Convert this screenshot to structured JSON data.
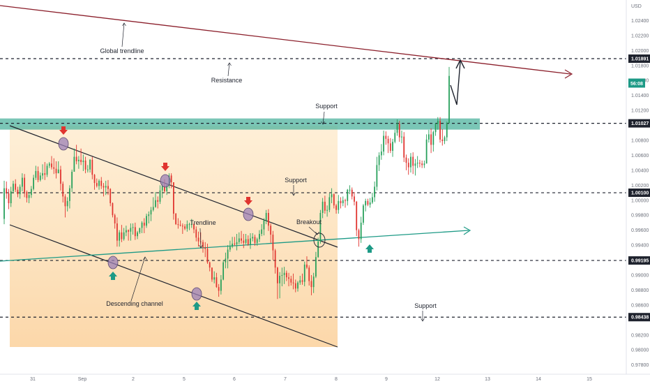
{
  "chart_data": {
    "type": "candlestick",
    "currency": "USD",
    "y_ticks": [
      "1.02400",
      "1.02200",
      "1.02000",
      "1.01800",
      "1.01600",
      "1.01400",
      "1.01200",
      "1.00800",
      "1.00600",
      "1.00400",
      "1.00200",
      "1.00000",
      "0.99800",
      "0.99600",
      "0.99400",
      "0.99000",
      "0.98800",
      "0.98600",
      "0.98200",
      "0.98000",
      "0.97800"
    ],
    "ylim": [
      0.9775,
      1.026
    ],
    "x_ticks": [
      "31",
      "Sep",
      "2",
      "5",
      "6",
      "7",
      "8",
      "9",
      "12",
      "13",
      "14",
      "15"
    ],
    "price_tags": [
      {
        "label": "1.01891",
        "style": "dark"
      },
      {
        "label": "1.01027",
        "style": "dark"
      },
      {
        "label": "1.00100",
        "style": "dark"
      },
      {
        "label": "0.99195",
        "style": "dark"
      },
      {
        "label": "0.98438",
        "style": "dark"
      }
    ],
    "current_tag": {
      "label": "56:08",
      "style": "teal"
    },
    "levels": [
      1.01891,
      1.01027,
      1.001,
      0.99195,
      0.98438
    ],
    "annotations": {
      "global_trendline": "Global trendline",
      "resistance": "Resistance",
      "support_top": "Support",
      "support_mid": "Support",
      "support_bottom": "Support",
      "trendline": "Trendline",
      "breakout": "Breakout",
      "descending_channel": "Descending channel"
    },
    "candles": [
      [
        0.9975,
        1.0026,
        0.9968,
        1.0016
      ],
      [
        1.0016,
        1.0025,
        1.0002,
        1.0009
      ],
      [
        1.0009,
        1.0015,
        0.9988,
        0.9996
      ],
      [
        0.9996,
        1.0018,
        0.9991,
        1.0012
      ],
      [
        1.0012,
        1.0026,
        1.0009,
        1.0022
      ],
      [
        1.0022,
        1.0028,
        1.0011,
        1.0014
      ],
      [
        1.0014,
        1.0018,
        1.0004,
        1.0008
      ],
      [
        1.0008,
        1.0021,
        1.0002,
        1.0018
      ],
      [
        1.0018,
        1.0036,
        1.0012,
        1.003
      ],
      [
        1.003,
        1.0035,
        1.0004,
        1.0011
      ],
      [
        1.0011,
        1.0013,
        0.9997,
        1.0003
      ],
      [
        1.0003,
        1.0011,
        0.9996,
        1.0007
      ],
      [
        1.0007,
        1.0019,
        1.0003,
        1.0015
      ],
      [
        1.0015,
        1.0034,
        1.0013,
        1.003
      ],
      [
        1.003,
        1.0046,
        1.0027,
        1.0039
      ],
      [
        1.0039,
        1.0045,
        1.0024,
        1.0027
      ],
      [
        1.0027,
        1.0037,
        1.0025,
        1.0033
      ],
      [
        1.0033,
        1.0048,
        1.0028,
        1.0036
      ],
      [
        1.0036,
        1.0051,
        1.0027,
        1.0034
      ],
      [
        1.0034,
        1.0049,
        1.0031,
        1.0046
      ],
      [
        1.0046,
        1.0051,
        1.0043,
        1.0049
      ],
      [
        1.0049,
        1.0059,
        1.0041,
        1.0044
      ],
      [
        1.0044,
        1.0056,
        1.0035,
        1.0042
      ],
      [
        1.0042,
        1.0052,
        1.0029,
        1.0036
      ],
      [
        1.0036,
        1.0052,
        1.0036,
        1.0041
      ],
      [
        1.0041,
        1.0046,
        1.0013,
        1.0022
      ],
      [
        1.0022,
        1.0025,
        0.9997,
        1.0005
      ],
      [
        1.0005,
        1.0008,
        0.9977,
        0.9992
      ],
      [
        0.9992,
        1.0004,
        0.9985,
        0.9999
      ],
      [
        0.9999,
        1.002,
        0.9989,
        1.0016
      ],
      [
        1.0016,
        1.0041,
        1.0011,
        1.0038
      ],
      [
        1.0038,
        1.0069,
        1.0038,
        1.0058
      ],
      [
        1.0058,
        1.0074,
        1.0048,
        1.0052
      ],
      [
        1.0052,
        1.0059,
        1.0042,
        1.0054
      ],
      [
        1.0054,
        1.0069,
        1.0047,
        1.0051
      ],
      [
        1.0051,
        1.0061,
        1.0039,
        1.0053
      ],
      [
        1.0053,
        1.0058,
        1.0036,
        1.0041
      ],
      [
        1.0041,
        1.0047,
        1.0037,
        1.0041
      ],
      [
        1.0041,
        1.0055,
        1.0037,
        1.0054
      ],
      [
        1.0054,
        1.0058,
        1.0028,
        1.0034
      ],
      [
        1.0034,
        1.0035,
        1.0014,
        1.0023
      ],
      [
        1.0023,
        1.0029,
        1.0017,
        1.0019
      ],
      [
        1.0019,
        1.0028,
        1.0014,
        1.0026
      ],
      [
        1.0026,
        1.0031,
        1.0015,
        1.0019
      ],
      [
        1.0019,
        1.0023,
        1.0005,
        1.0017
      ],
      [
        1.0017,
        1.0026,
        1.0007,
        1.0019
      ],
      [
        1.0019,
        1.0027,
        1.0007,
        1.0015
      ],
      [
        1.0015,
        1.0016,
        0.9992,
        0.9996
      ],
      [
        0.9996,
        0.9997,
        0.9977,
        0.998
      ],
      [
        0.998,
        0.9982,
        0.9962,
        0.9969
      ],
      [
        0.9969,
        0.9977,
        0.9938,
        0.9946
      ],
      [
        0.9946,
        0.996,
        0.9938,
        0.9957
      ],
      [
        0.9957,
        0.9967,
        0.9944,
        0.9948
      ],
      [
        0.9948,
        0.9963,
        0.9946,
        0.9957
      ],
      [
        0.9957,
        0.9966,
        0.9952,
        0.996
      ],
      [
        0.996,
        0.9961,
        0.9946,
        0.9958
      ],
      [
        0.9958,
        0.9969,
        0.9946,
        0.9963
      ],
      [
        0.9963,
        0.9969,
        0.9954,
        0.9964
      ],
      [
        0.9964,
        0.997,
        0.9947,
        0.9952
      ],
      [
        0.9952,
        0.9959,
        0.9948,
        0.9957
      ],
      [
        0.9957,
        0.9963,
        0.9955,
        0.9963
      ],
      [
        0.9963,
        0.9972,
        0.9956,
        0.997
      ],
      [
        0.997,
        0.9976,
        0.9956,
        0.9966
      ],
      [
        0.9966,
        0.9982,
        0.9963,
        0.9979
      ],
      [
        0.9979,
        0.9985,
        0.9969,
        0.9981
      ],
      [
        0.9981,
        0.9991,
        0.9972,
        0.9987
      ],
      [
        0.9987,
        1.0004,
        0.9985,
        0.9991
      ],
      [
        0.9991,
        1.0011,
        0.999,
        1.0
      ],
      [
        1.0,
        1.0005,
        0.9989,
        0.9998
      ],
      [
        0.9998,
        1.002,
        0.9995,
        1.0013
      ],
      [
        1.0013,
        1.0025,
        1.0003,
        1.0019
      ],
      [
        1.0019,
        1.0028,
        1.001,
        1.0012
      ],
      [
        1.0012,
        1.0021,
        1.0007,
        1.002
      ],
      [
        1.002,
        1.0036,
        1.0016,
        1.0033
      ],
      [
        1.0033,
        1.0036,
        1.0016,
        1.0024
      ],
      [
        1.0024,
        1.0024,
        0.9974,
        0.9982
      ],
      [
        0.9982,
        0.9983,
        0.9967,
        0.9968
      ],
      [
        0.9968,
        0.9976,
        0.9962,
        0.9967
      ],
      [
        0.9967,
        0.9973,
        0.9965,
        0.9966
      ],
      [
        0.9966,
        0.9969,
        0.9955,
        0.9965
      ],
      [
        0.9965,
        0.9968,
        0.996,
        0.9962
      ],
      [
        0.9962,
        0.9973,
        0.9958,
        0.9968
      ],
      [
        0.9968,
        0.997,
        0.996,
        0.9968
      ],
      [
        0.9968,
        0.9975,
        0.9963,
        0.9968
      ],
      [
        0.9968,
        0.9969,
        0.9956,
        0.9961
      ],
      [
        0.9961,
        0.9965,
        0.9945,
        0.995
      ],
      [
        0.995,
        0.9958,
        0.9938,
        0.9945
      ],
      [
        0.9945,
        0.9957,
        0.9941,
        0.9944
      ],
      [
        0.9944,
        0.9947,
        0.993,
        0.9937
      ],
      [
        0.9937,
        0.9944,
        0.9924,
        0.9935
      ],
      [
        0.9935,
        0.9942,
        0.9915,
        0.9917
      ],
      [
        0.9917,
        0.9918,
        0.9905,
        0.991
      ],
      [
        0.991,
        0.991,
        0.9891,
        0.9894
      ],
      [
        0.9894,
        0.9905,
        0.9889,
        0.9897
      ],
      [
        0.9897,
        0.9903,
        0.9883,
        0.9884
      ],
      [
        0.9884,
        0.9888,
        0.9871,
        0.9879
      ],
      [
        0.9879,
        0.99,
        0.9874,
        0.9894
      ],
      [
        0.9894,
        0.992,
        0.9893,
        0.9917
      ],
      [
        0.9917,
        0.993,
        0.9909,
        0.9922
      ],
      [
        0.9922,
        0.994,
        0.9909,
        0.9934
      ],
      [
        0.9934,
        0.9946,
        0.9931,
        0.9938
      ],
      [
        0.9938,
        0.9951,
        0.9936,
        0.9942
      ],
      [
        0.9942,
        0.9951,
        0.9939,
        0.9941
      ],
      [
        0.9941,
        0.9955,
        0.9933,
        0.9944
      ],
      [
        0.9944,
        0.9957,
        0.9941,
        0.9949
      ],
      [
        0.9949,
        0.9959,
        0.9942,
        0.9946
      ],
      [
        0.9946,
        0.9955,
        0.9936,
        0.9943
      ],
      [
        0.9943,
        0.9955,
        0.9941,
        0.9948
      ],
      [
        0.9948,
        0.9953,
        0.9939,
        0.9941
      ],
      [
        0.9941,
        0.9956,
        0.9935,
        0.9949
      ],
      [
        0.9949,
        0.9956,
        0.9945,
        0.9951
      ],
      [
        0.9951,
        0.9954,
        0.9939,
        0.9943
      ],
      [
        0.9943,
        0.995,
        0.9939,
        0.9948
      ],
      [
        0.9948,
        0.996,
        0.9944,
        0.9955
      ],
      [
        0.9955,
        0.9968,
        0.9952,
        0.9961
      ],
      [
        0.9961,
        0.9976,
        0.9953,
        0.9973
      ],
      [
        0.9973,
        0.9987,
        0.9968,
        0.9983
      ],
      [
        0.9983,
        0.9988,
        0.9959,
        0.9966
      ],
      [
        0.9966,
        0.9969,
        0.9943,
        0.9954
      ],
      [
        0.9954,
        0.9959,
        0.992,
        0.9933
      ],
      [
        0.9933,
        0.9935,
        0.9902,
        0.991
      ],
      [
        0.991,
        0.9911,
        0.9868,
        0.9889
      ],
      [
        0.9889,
        0.9904,
        0.9869,
        0.9899
      ],
      [
        0.9899,
        0.991,
        0.9885,
        0.99
      ],
      [
        0.99,
        0.9911,
        0.9888,
        0.9903
      ],
      [
        0.9903,
        0.9906,
        0.9892,
        0.9897
      ],
      [
        0.9897,
        0.9903,
        0.9885,
        0.9895
      ],
      [
        0.9895,
        0.9899,
        0.9886,
        0.989
      ],
      [
        0.989,
        0.9902,
        0.9881,
        0.9889
      ],
      [
        0.9889,
        0.9894,
        0.9877,
        0.9882
      ],
      [
        0.9882,
        0.9892,
        0.9878,
        0.989
      ],
      [
        0.989,
        0.9899,
        0.9887,
        0.9893
      ],
      [
        0.9893,
        0.9902,
        0.9887,
        0.9891
      ],
      [
        0.9891,
        0.9918,
        0.9885,
        0.9914
      ],
      [
        0.9914,
        0.9925,
        0.9908,
        0.991
      ],
      [
        0.991,
        0.9913,
        0.9886,
        0.9892
      ],
      [
        0.9892,
        0.99,
        0.9873,
        0.9884
      ],
      [
        0.9884,
        0.9903,
        0.9876,
        0.9898
      ],
      [
        0.9898,
        0.9931,
        0.9896,
        0.9924
      ],
      [
        0.9924,
        0.995,
        0.9923,
        0.9945
      ],
      [
        0.9945,
        0.9987,
        0.9942,
        0.9983
      ],
      [
        0.9983,
        1.0003,
        0.9976,
        0.9998
      ],
      [
        0.9998,
        1.0006,
        0.9982,
        0.9986
      ],
      [
        0.9986,
        0.9993,
        0.9978,
        0.9987
      ],
      [
        0.9987,
        1.0009,
        0.9984,
        1.0004
      ],
      [
        1.0004,
        1.0016,
        0.9996,
        1.0008
      ],
      [
        1.0008,
        1.0009,
        0.9989,
        0.9993
      ],
      [
        0.9993,
        0.9995,
        0.9982,
        0.9987
      ],
      [
        0.9987,
        1.0007,
        0.9982,
        0.9999
      ],
      [
        0.9999,
        1.0004,
        0.9989,
        0.9996
      ],
      [
        0.9996,
        1.0005,
        0.9992,
        1.0
      ],
      [
        1.0,
        1.0002,
        0.999,
        0.9999
      ],
      [
        0.9999,
        1.0015,
        0.9993,
        1.0014
      ],
      [
        1.0014,
        1.002,
        1.0008,
        1.0014
      ],
      [
        1.0014,
        1.0017,
        1.0001,
        1.0005
      ],
      [
        1.0005,
        1.0011,
        0.9993,
        0.9998
      ],
      [
        0.9998,
        0.9999,
        0.9952,
        0.996
      ],
      [
        0.996,
        0.9962,
        0.9938,
        0.9948
      ],
      [
        0.9948,
        0.9978,
        0.9943,
        0.997
      ],
      [
        0.997,
        0.9995,
        0.9967,
        0.9993
      ],
      [
        0.9993,
        1.0002,
        0.9985,
        0.9999
      ],
      [
        0.9999,
        1.0002,
        0.9992,
        0.9994
      ],
      [
        0.9994,
        1.0003,
        0.999,
        0.9997
      ],
      [
        0.9997,
        1.001,
        0.9995,
        1.0004
      ],
      [
        1.0004,
        1.0025,
        0.9998,
        1.0018
      ],
      [
        1.0018,
        1.0058,
        1.0013,
        1.0047
      ],
      [
        1.0047,
        1.0064,
        1.0039,
        1.006
      ],
      [
        1.006,
        1.0075,
        1.0054,
        1.0065
      ],
      [
        1.0065,
        1.0093,
        1.006,
        1.0086
      ],
      [
        1.0086,
        1.0092,
        1.0074,
        1.0082
      ],
      [
        1.0082,
        1.0086,
        1.0063,
        1.0076
      ],
      [
        1.0076,
        1.0083,
        1.0063,
        1.0066
      ],
      [
        1.0066,
        1.0082,
        1.0058,
        1.0078
      ],
      [
        1.0078,
        1.0094,
        1.0076,
        1.009
      ],
      [
        1.009,
        1.0108,
        1.0086,
        1.0102
      ],
      [
        1.0102,
        1.0106,
        1.0078,
        1.0084
      ],
      [
        1.0084,
        1.0093,
        1.0076,
        1.0085
      ],
      [
        1.0085,
        1.0091,
        1.0051,
        1.0057
      ],
      [
        1.0057,
        1.0061,
        1.004,
        1.005
      ],
      [
        1.005,
        1.0056,
        1.0034,
        1.0044
      ],
      [
        1.0044,
        1.0063,
        1.0037,
        1.0058
      ],
      [
        1.0058,
        1.0064,
        1.0035,
        1.0046
      ],
      [
        1.0046,
        1.0055,
        1.0033,
        1.0049
      ],
      [
        1.0049,
        1.0059,
        1.0043,
        1.005
      ],
      [
        1.005,
        1.0054,
        1.0044,
        1.0049
      ],
      [
        1.0049,
        1.0053,
        1.0043,
        1.0047
      ],
      [
        1.0047,
        1.0053,
        1.0043,
        1.0049
      ],
      [
        1.0049,
        1.0088,
        1.0049,
        1.0081
      ],
      [
        1.0081,
        1.0094,
        1.0077,
        1.0088
      ],
      [
        1.0088,
        1.0096,
        1.0063,
        1.0074
      ],
      [
        1.0074,
        1.0093,
        1.0065,
        1.0091
      ],
      [
        1.0091,
        1.0103,
        1.0086,
        1.0102
      ],
      [
        1.0102,
        1.0111,
        1.0094,
        1.0106
      ],
      [
        1.0106,
        1.0111,
        1.0077,
        1.0081
      ],
      [
        1.0081,
        1.0095,
        1.0073,
        1.0079
      ],
      [
        1.0079,
        1.0086,
        1.0075,
        1.0084
      ],
      [
        1.0084,
        1.0105,
        1.0079,
        1.0103
      ],
      [
        1.0103,
        1.0178,
        1.0103,
        1.0166
      ]
    ],
    "visible_from": "31",
    "visible_to": "15"
  }
}
